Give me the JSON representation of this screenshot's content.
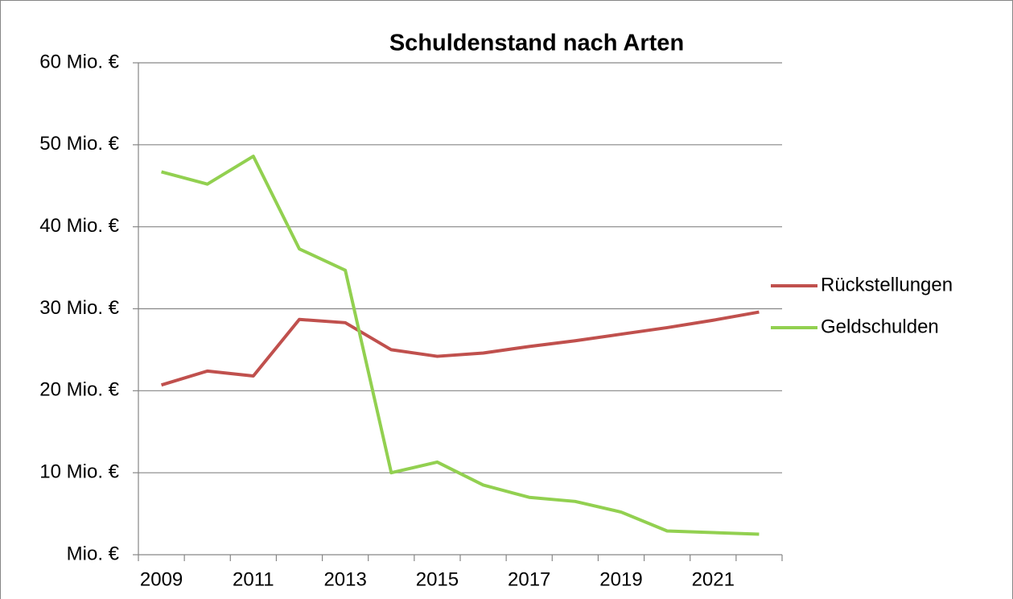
{
  "chart_data": {
    "type": "line",
    "title": "Schuldenstand nach Arten",
    "categories": [
      "2009",
      null,
      "2011",
      null,
      "2013",
      null,
      "2015",
      null,
      "2017",
      null,
      "2019",
      null,
      "2021",
      null
    ],
    "series": [
      {
        "name": "Rückstellungen",
        "color": "#c0504d",
        "values": [
          20.7,
          22.4,
          21.8,
          28.7,
          28.3,
          25.0,
          24.2,
          24.6,
          25.4,
          26.1,
          26.9,
          27.7,
          28.6,
          29.6
        ]
      },
      {
        "name": "Geldschulden",
        "color": "#92d050",
        "values": [
          46.7,
          45.2,
          48.6,
          37.3,
          34.7,
          10.0,
          11.3,
          8.5,
          7.0,
          6.5,
          5.2,
          2.9,
          2.7,
          2.5
        ]
      }
    ],
    "ylim": [
      0,
      60
    ],
    "yticks": [
      {
        "value": 0,
        "label": "Mio. €"
      },
      {
        "value": 10,
        "label": "10 Mio. €"
      },
      {
        "value": 20,
        "label": "20 Mio. €"
      },
      {
        "value": 30,
        "label": "30 Mio. €"
      },
      {
        "value": 40,
        "label": "40 Mio. €"
      },
      {
        "value": 50,
        "label": "50 Mio. €"
      },
      {
        "value": 60,
        "label": "60 Mio. €"
      }
    ],
    "grid": true,
    "legend": "right"
  }
}
